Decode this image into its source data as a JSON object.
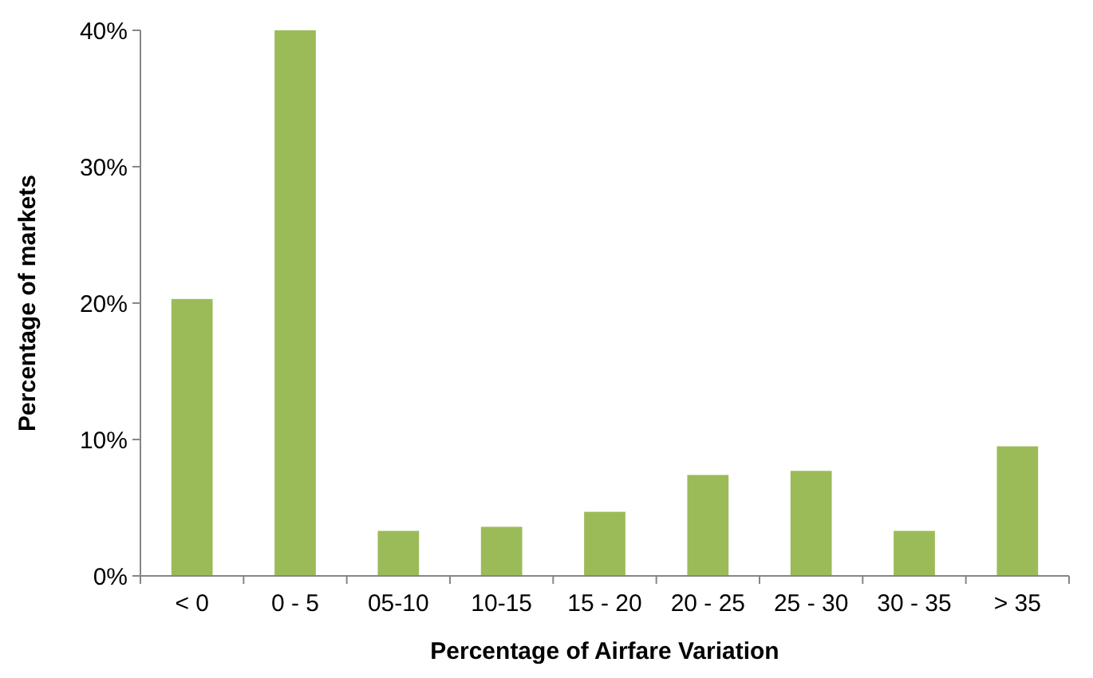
{
  "chart_data": {
    "type": "bar",
    "xlabel": "Percentage of Airfare Variation",
    "ylabel": "Percentage of markets",
    "categories": [
      "< 0",
      "0 - 5",
      "05-10",
      "10-15",
      "15 - 20",
      "20 - 25",
      "25 - 30",
      "30 - 35",
      "> 35"
    ],
    "values": [
      20.3,
      40,
      3.3,
      3.6,
      4.7,
      7.4,
      7.7,
      3.3,
      9.5
    ],
    "color": "#9bbb59",
    "ylim": [
      0,
      40
    ],
    "yticks": [
      {
        "value": 0,
        "label": "0%"
      },
      {
        "value": 10,
        "label": "10%"
      },
      {
        "value": 20,
        "label": "20%"
      },
      {
        "value": 30,
        "label": "30%"
      },
      {
        "value": 40,
        "label": "40%"
      }
    ],
    "grid": false
  }
}
